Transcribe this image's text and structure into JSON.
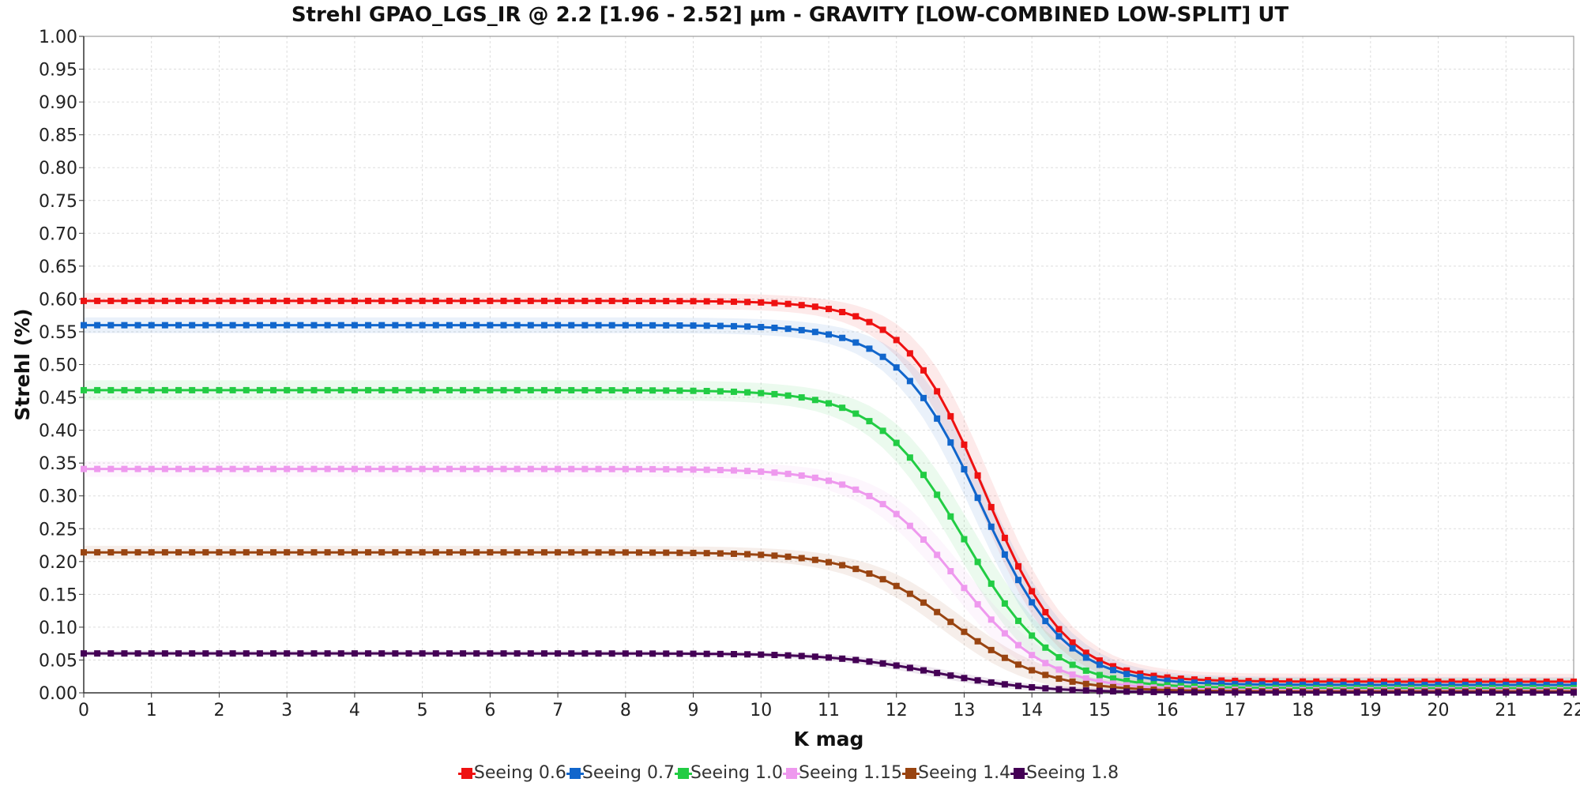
{
  "chart_data": {
    "type": "line",
    "title": "Strehl GPAO_LGS_IR @ 2.2 [1.96 - 2.52] µm - GRAVITY [LOW-COMBINED LOW-SPLIT] UT",
    "xlabel": "K mag",
    "ylabel": "Strehl (%)",
    "xlim": [
      0,
      22
    ],
    "ylim": [
      0,
      1
    ],
    "x_ticks": [
      "0",
      "1",
      "2",
      "3",
      "4",
      "5",
      "6",
      "7",
      "8",
      "9",
      "10",
      "11",
      "12",
      "13",
      "14",
      "15",
      "16",
      "17",
      "18",
      "19",
      "20",
      "21",
      "22"
    ],
    "y_ticks": [
      "0.00",
      "0.05",
      "0.10",
      "0.15",
      "0.20",
      "0.25",
      "0.30",
      "0.35",
      "0.40",
      "0.45",
      "0.50",
      "0.55",
      "0.60",
      "0.65",
      "0.70",
      "0.75",
      "0.80",
      "0.85",
      "0.90",
      "0.95",
      "1.00"
    ],
    "grid": true,
    "legend_position": "bottom",
    "x_step": 0.2,
    "series": [
      {
        "name": "Seeing 0.6",
        "color": "#ee1111",
        "plateau": 0.597,
        "mid": 13.3,
        "width": 0.6,
        "floor": 0.017,
        "band": 0.012
      },
      {
        "name": "Seeing 0.7",
        "color": "#1166cc",
        "plateau": 0.56,
        "mid": 13.25,
        "width": 0.62,
        "floor": 0.012,
        "band": 0.012
      },
      {
        "name": "Seeing 1.0",
        "color": "#22cc44",
        "plateau": 0.461,
        "mid": 13.0,
        "width": 0.65,
        "floor": 0.007,
        "band": 0.015
      },
      {
        "name": "Seeing 1.15",
        "color": "#ee99ee",
        "plateau": 0.341,
        "mid": 12.9,
        "width": 0.66,
        "floor": 0.004,
        "band": 0.012
      },
      {
        "name": "Seeing 1.4",
        "color": "#994411",
        "plateau": 0.214,
        "mid": 12.8,
        "width": 0.7,
        "floor": 0.002,
        "band": 0.01
      },
      {
        "name": "Seeing 1.8",
        "color": "#440055",
        "plateau": 0.06,
        "mid": 12.6,
        "width": 0.75,
        "floor": 0.0005,
        "band": 0.004
      }
    ]
  }
}
